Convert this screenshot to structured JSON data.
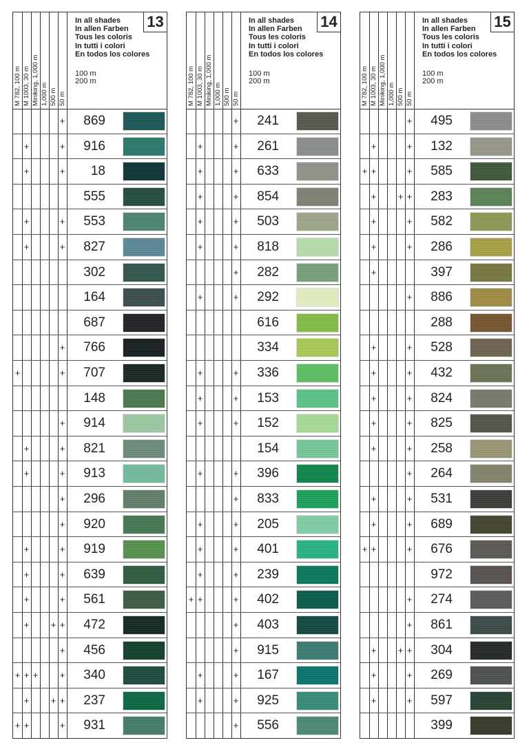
{
  "header": {
    "columns": [
      "M 782, 100 m",
      "M 1003, 30 m",
      "Miniking, 1,000 m",
      "1,000 m",
      "500 m",
      "50 m"
    ],
    "languages": [
      "In all shades",
      "In allen Farben",
      "Tous les coloris",
      "In tutti i colori",
      "En todos los colores"
    ],
    "lengths": [
      "100 m",
      "200 m"
    ],
    "mark_symbol": "+"
  },
  "panels": [
    {
      "number": "13",
      "rows": [
        {
          "code": "869",
          "marks": "000001",
          "color": "#1d5a58"
        },
        {
          "code": "916",
          "marks": "010001",
          "color": "#2e7b70"
        },
        {
          "code": "18",
          "marks": "010001",
          "color": "#12383a"
        },
        {
          "code": "555",
          "marks": "000000",
          "color": "#284f42"
        },
        {
          "code": "553",
          "marks": "010001",
          "color": "#4f8675"
        },
        {
          "code": "827",
          "marks": "010001",
          "color": "#5f8a99"
        },
        {
          "code": "302",
          "marks": "000000",
          "color": "#35584f"
        },
        {
          "code": "164",
          "marks": "000000",
          "color": "#3c4f4e"
        },
        {
          "code": "687",
          "marks": "000000",
          "color": "#25242a"
        },
        {
          "code": "766",
          "marks": "000001",
          "color": "#1a2124"
        },
        {
          "code": "707",
          "marks": "100001",
          "color": "#1b2926"
        },
        {
          "code": "148",
          "marks": "000000",
          "color": "#4c7b4f"
        },
        {
          "code": "914",
          "marks": "000001",
          "color": "#9fcba4"
        },
        {
          "code": "821",
          "marks": "010001",
          "color": "#6e8e7c"
        },
        {
          "code": "913",
          "marks": "010001",
          "color": "#74bd9d"
        },
        {
          "code": "296",
          "marks": "000001",
          "color": "#64806d"
        },
        {
          "code": "920",
          "marks": "000001",
          "color": "#487a55"
        },
        {
          "code": "919",
          "marks": "010001",
          "color": "#58944f"
        },
        {
          "code": "639",
          "marks": "010001",
          "color": "#325f43"
        },
        {
          "code": "561",
          "marks": "010001",
          "color": "#3f5e48"
        },
        {
          "code": "472",
          "marks": "010011",
          "color": "#172c25"
        },
        {
          "code": "456",
          "marks": "000001",
          "color": "#154330"
        },
        {
          "code": "340",
          "marks": "111001",
          "color": "#1f4d42"
        },
        {
          "code": "237",
          "marks": "010011",
          "color": "#0f6b45"
        },
        {
          "code": "931",
          "marks": "110001",
          "color": "#48806a"
        }
      ]
    },
    {
      "number": "14",
      "rows": [
        {
          "code": "241",
          "marks": "000001",
          "color": "#5a5a50"
        },
        {
          "code": "261",
          "marks": "010001",
          "color": "#8c918c"
        },
        {
          "code": "633",
          "marks": "010001",
          "color": "#94958b"
        },
        {
          "code": "854",
          "marks": "010001",
          "color": "#838276"
        },
        {
          "code": "503",
          "marks": "010001",
          "color": "#a0a88c"
        },
        {
          "code": "818",
          "marks": "010001",
          "color": "#b8dfae"
        },
        {
          "code": "282",
          "marks": "000001",
          "color": "#7ba27c"
        },
        {
          "code": "292",
          "marks": "010001",
          "color": "#e2f1bf"
        },
        {
          "code": "616",
          "marks": "000000",
          "color": "#84c04a"
        },
        {
          "code": "334",
          "marks": "000000",
          "color": "#a9cb5a"
        },
        {
          "code": "336",
          "marks": "010001",
          "color": "#5fc165"
        },
        {
          "code": "153",
          "marks": "010001",
          "color": "#5cc48a"
        },
        {
          "code": "152",
          "marks": "010001",
          "color": "#a8dc98"
        },
        {
          "code": "154",
          "marks": "000000",
          "color": "#78c99b"
        },
        {
          "code": "396",
          "marks": "010001",
          "color": "#13884c"
        },
        {
          "code": "833",
          "marks": "000001",
          "color": "#1fa35d"
        },
        {
          "code": "205",
          "marks": "010001",
          "color": "#84cfa9"
        },
        {
          "code": "401",
          "marks": "010001",
          "color": "#2bb586"
        },
        {
          "code": "239",
          "marks": "010001",
          "color": "#0e7a5e"
        },
        {
          "code": "402",
          "marks": "110001",
          "color": "#0d5e4e"
        },
        {
          "code": "403",
          "marks": "000001",
          "color": "#164b45"
        },
        {
          "code": "915",
          "marks": "000001",
          "color": "#3e7d75"
        },
        {
          "code": "167",
          "marks": "010001",
          "color": "#0e7570"
        },
        {
          "code": "925",
          "marks": "010001",
          "color": "#3b8d7b"
        },
        {
          "code": "556",
          "marks": "000001",
          "color": "#4f8a78"
        }
      ]
    },
    {
      "number": "15",
      "rows": [
        {
          "code": "495",
          "marks": "000001",
          "color": "#8d8f8c"
        },
        {
          "code": "132",
          "marks": "010001",
          "color": "#9b998a"
        },
        {
          "code": "585",
          "marks": "110001",
          "color": "#435a3c"
        },
        {
          "code": "283",
          "marks": "010011",
          "color": "#5d8557"
        },
        {
          "code": "582",
          "marks": "010001",
          "color": "#8f9a56"
        },
        {
          "code": "286",
          "marks": "010001",
          "color": "#aaa34a"
        },
        {
          "code": "397",
          "marks": "010000",
          "color": "#7a7a44"
        },
        {
          "code": "886",
          "marks": "000001",
          "color": "#a38c48"
        },
        {
          "code": "288",
          "marks": "000000",
          "color": "#7a5733"
        },
        {
          "code": "528",
          "marks": "010001",
          "color": "#706553"
        },
        {
          "code": "432",
          "marks": "010001",
          "color": "#6b7657"
        },
        {
          "code": "824",
          "marks": "010001",
          "color": "#7b7b6f"
        },
        {
          "code": "825",
          "marks": "010001",
          "color": "#55574f"
        },
        {
          "code": "258",
          "marks": "010001",
          "color": "#9a9876"
        },
        {
          "code": "264",
          "marks": "000001",
          "color": "#86856f"
        },
        {
          "code": "531",
          "marks": "010001",
          "color": "#403e3a"
        },
        {
          "code": "689",
          "marks": "010001",
          "color": "#484734"
        },
        {
          "code": "676",
          "marks": "110001",
          "color": "#5e5b56"
        },
        {
          "code": "972",
          "marks": "000000",
          "color": "#5a5452"
        },
        {
          "code": "274",
          "marks": "000001",
          "color": "#5d5f5f"
        },
        {
          "code": "861",
          "marks": "000001",
          "color": "#3d4c4b"
        },
        {
          "code": "304",
          "marks": "010011",
          "color": "#272c28"
        },
        {
          "code": "269",
          "marks": "010001",
          "color": "#4f5450"
        },
        {
          "code": "597",
          "marks": "010001",
          "color": "#2a4535"
        },
        {
          "code": "399",
          "marks": "000000",
          "color": "#3c3c2d"
        }
      ]
    }
  ]
}
